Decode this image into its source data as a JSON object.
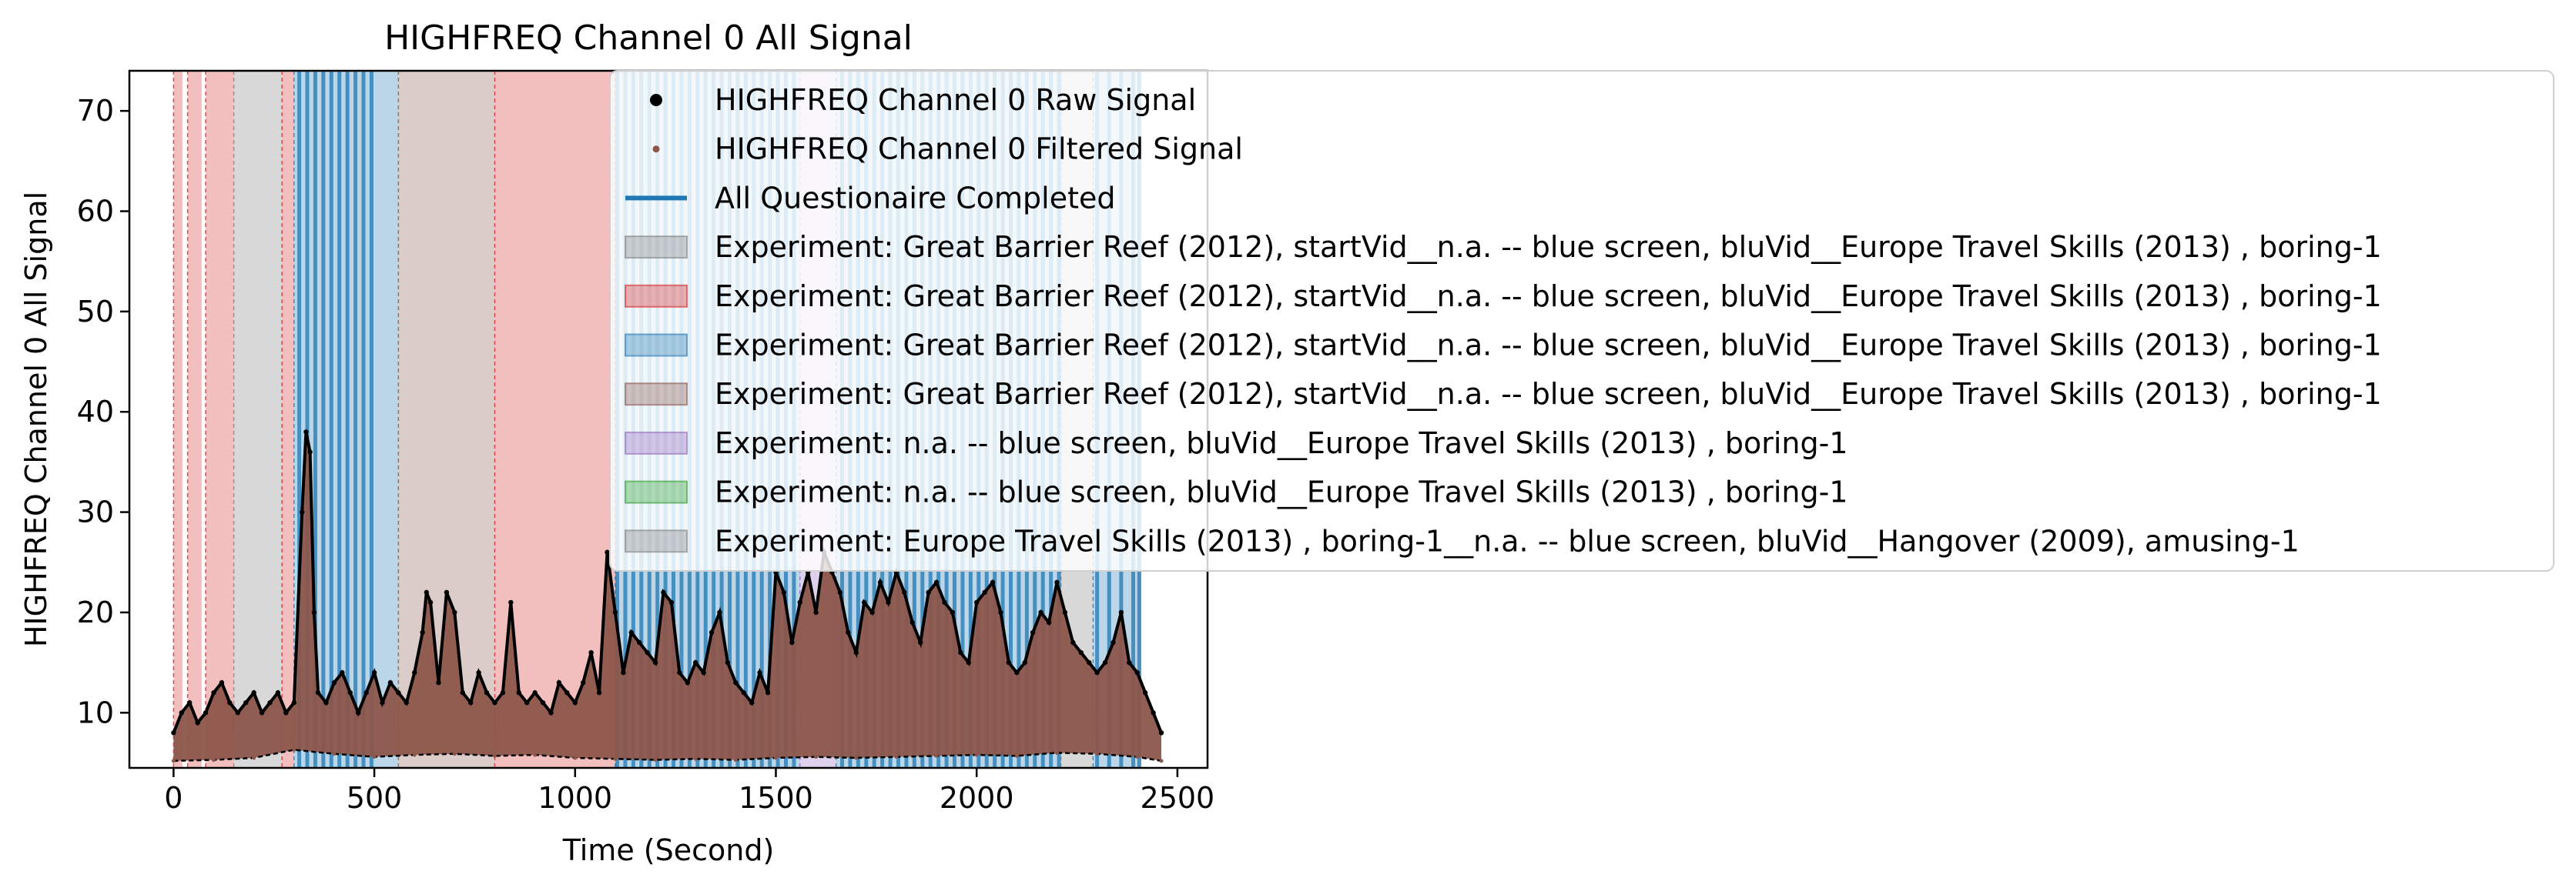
{
  "chart_data": {
    "type": "line",
    "title": "HIGHFREQ Channel 0 All Signal",
    "xlabel": "Time (Second)",
    "ylabel": "HIGHFREQ Channel 0 All Signal",
    "xlim": [
      -110,
      2575
    ],
    "ylim": [
      4.5,
      74.0
    ],
    "x_ticks": [
      0,
      500,
      1000,
      1500,
      2000,
      2500
    ],
    "y_ticks": [
      10,
      20,
      30,
      40,
      50,
      60,
      70
    ],
    "x_tick_labels": [
      "0",
      "500",
      "1000",
      "1500",
      "2000",
      "2500"
    ],
    "y_tick_labels": [
      "10",
      "20",
      "30",
      "40",
      "50",
      "60",
      "70"
    ],
    "grid": false,
    "legend_position": "upper-right",
    "legend": [
      {
        "label": "HIGHFREQ Channel 0 Raw Signal",
        "kind": "dot",
        "color": "#000000"
      },
      {
        "label": "HIGHFREQ Channel 0 Filtered Signal",
        "kind": "small-dot",
        "color": "#8c564b"
      },
      {
        "label": "All Questionaire Completed",
        "kind": "line",
        "color": "#1f77b4"
      },
      {
        "label": "Experiment: Great Barrier Reef (2012), startVid__n.a. -- blue screen, bluVid__Europe Travel Skills (2013) , boring-1",
        "kind": "patch",
        "color": "#7f7f7f"
      },
      {
        "label": "Experiment: Great Barrier Reef (2012), startVid__n.a. -- blue screen, bluVid__Europe Travel Skills (2013) , boring-1",
        "kind": "patch",
        "color": "#d62728"
      },
      {
        "label": "Experiment: Great Barrier Reef (2012), startVid__n.a. -- blue screen, bluVid__Europe Travel Skills (2013) , boring-1",
        "kind": "patch",
        "color": "#1f77b4"
      },
      {
        "label": "Experiment: Great Barrier Reef (2012), startVid__n.a. -- blue screen, bluVid__Europe Travel Skills (2013) , boring-1",
        "kind": "patch",
        "color": "#8c564b"
      },
      {
        "label": "Experiment: n.a. -- blue screen, bluVid__Europe Travel Skills (2013) , boring-1",
        "kind": "patch",
        "color": "#9467bd"
      },
      {
        "label": "Experiment: n.a. -- blue screen, bluVid__Europe Travel Skills (2013) , boring-1",
        "kind": "patch",
        "color": "#2ca02c"
      },
      {
        "label": "Experiment: Europe Travel Skills (2013) , boring-1__n.a. -- blue screen, bluVid__Hangover (2009), amusing-1",
        "kind": "patch",
        "color": "#7f7f7f"
      }
    ],
    "shaded_regions": [
      {
        "x0": 0,
        "x1": 22,
        "color": "#d62728"
      },
      {
        "x0": 35,
        "x1": 70,
        "color": "#d62728"
      },
      {
        "x0": 80,
        "x1": 150,
        "color": "#d62728"
      },
      {
        "x0": 150,
        "x1": 270,
        "color": "#7f7f7f"
      },
      {
        "x0": 270,
        "x1": 300,
        "color": "#d62728"
      },
      {
        "x0": 300,
        "x1": 560,
        "color": "#1f77b4"
      },
      {
        "x0": 560,
        "x1": 800,
        "color": "#8c564b"
      },
      {
        "x0": 800,
        "x1": 1100,
        "color": "#d62728"
      },
      {
        "x0": 1100,
        "x1": 1560,
        "color": "#1f77b4"
      },
      {
        "x0": 1560,
        "x1": 1650,
        "color": "#9467bd"
      },
      {
        "x0": 1650,
        "x1": 2210,
        "color": "#1f77b4"
      },
      {
        "x0": 2210,
        "x1": 2290,
        "color": "#7f7f7f"
      },
      {
        "x0": 2290,
        "x1": 2410,
        "color": "#1f77b4"
      }
    ],
    "questionnaire_lines": [
      313,
      333,
      353,
      373,
      393,
      413,
      433,
      453,
      473,
      493,
      1105,
      1125,
      1145,
      1165,
      1185,
      1205,
      1225,
      1245,
      1265,
      1285,
      1305,
      1325,
      1345,
      1365,
      1385,
      1405,
      1425,
      1445,
      1465,
      1485,
      1505,
      1525,
      1545,
      1665,
      1685,
      1705,
      1725,
      1745,
      1765,
      1785,
      1805,
      1825,
      1845,
      1865,
      1885,
      1905,
      1925,
      1945,
      1965,
      1985,
      2005,
      2025,
      2045,
      2065,
      2085,
      2105,
      2125,
      2145,
      2165,
      2185,
      2205,
      2300,
      2330,
      2360,
      2390,
      2405
    ],
    "series": [
      {
        "name": "HIGHFREQ Channel 0 Raw Signal",
        "color": "#000000",
        "x": [
          0,
          20,
          40,
          60,
          80,
          100,
          120,
          140,
          160,
          180,
          200,
          220,
          240,
          260,
          280,
          300,
          320,
          330,
          340,
          350,
          360,
          380,
          400,
          420,
          440,
          460,
          480,
          500,
          520,
          540,
          560,
          580,
          600,
          620,
          630,
          640,
          660,
          680,
          700,
          720,
          740,
          760,
          780,
          800,
          820,
          840,
          860,
          880,
          900,
          920,
          940,
          960,
          980,
          1000,
          1020,
          1040,
          1060,
          1080,
          1100,
          1120,
          1140,
          1160,
          1180,
          1200,
          1220,
          1240,
          1260,
          1280,
          1300,
          1320,
          1340,
          1360,
          1380,
          1400,
          1420,
          1440,
          1460,
          1480,
          1500,
          1520,
          1540,
          1560,
          1580,
          1600,
          1620,
          1640,
          1660,
          1680,
          1700,
          1720,
          1740,
          1760,
          1780,
          1800,
          1820,
          1840,
          1860,
          1880,
          1900,
          1920,
          1940,
          1960,
          1980,
          2000,
          2020,
          2040,
          2060,
          2080,
          2100,
          2120,
          2140,
          2160,
          2180,
          2200,
          2220,
          2240,
          2260,
          2280,
          2300,
          2320,
          2340,
          2360,
          2380,
          2400,
          2420,
          2440,
          2460
        ],
        "y": [
          8,
          10,
          11,
          9,
          10,
          12,
          13,
          11,
          10,
          11,
          12,
          10,
          11,
          12,
          10,
          11,
          30,
          38,
          36,
          20,
          12,
          11,
          13,
          14,
          12,
          10,
          12,
          14,
          11,
          13,
          12,
          11,
          14,
          18,
          22,
          21,
          13,
          22,
          20,
          12,
          11,
          14,
          12,
          11,
          12,
          21,
          12,
          11,
          12,
          11,
          10,
          13,
          12,
          11,
          13,
          16,
          12,
          26,
          20,
          14,
          18,
          17,
          16,
          15,
          22,
          21,
          14,
          13,
          15,
          14,
          18,
          20,
          15,
          13,
          12,
          11,
          14,
          12,
          24,
          22,
          17,
          21,
          24,
          20,
          26,
          24,
          22,
          18,
          16,
          21,
          20,
          23,
          21,
          24,
          22,
          19,
          17,
          22,
          23,
          21,
          20,
          16,
          15,
          21,
          22,
          23,
          20,
          15,
          14,
          15,
          18,
          20,
          19,
          23,
          20,
          17,
          16,
          15,
          14,
          15,
          17,
          20,
          15,
          14,
          12,
          10,
          8
        ]
      },
      {
        "name": "HIGHFREQ Channel 0 Filtered Signal",
        "color": "#8c564b",
        "x": [
          0,
          100,
          200,
          300,
          400,
          500,
          600,
          700,
          800,
          900,
          1000,
          1100,
          1200,
          1300,
          1400,
          1500,
          1600,
          1700,
          1800,
          1900,
          2000,
          2100,
          2200,
          2300,
          2400,
          2460
        ],
        "y": [
          5.2,
          5.3,
          5.5,
          6.3,
          5.9,
          5.6,
          5.8,
          5.9,
          5.7,
          5.8,
          5.5,
          5.4,
          5.3,
          5.4,
          5.3,
          5.5,
          5.6,
          5.5,
          5.6,
          5.7,
          5.8,
          5.7,
          6.0,
          5.9,
          5.6,
          5.2
        ]
      }
    ]
  }
}
